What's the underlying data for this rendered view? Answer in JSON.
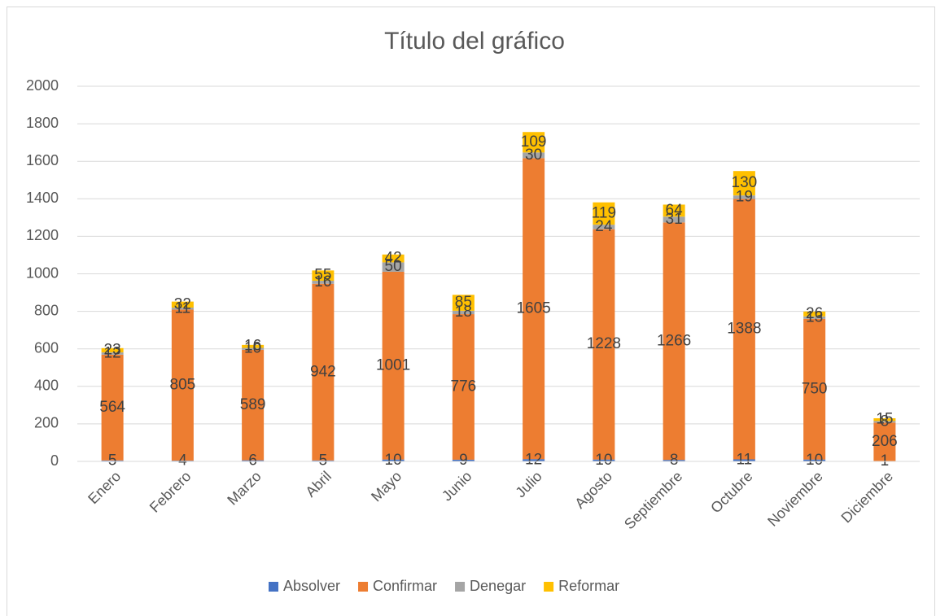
{
  "chart_data": {
    "type": "stacked_bar",
    "title": "Título del gráfico",
    "categories": [
      "Enero",
      "Febrero",
      "Marzo",
      "Abril",
      "Mayo",
      "Junio",
      "Julio",
      "Agosto",
      "Septiembre",
      "Octubre",
      "Noviembre",
      "Diciembre"
    ],
    "series": [
      {
        "name": "Absolver",
        "color": "#4472c4",
        "values": [
          5,
          4,
          6,
          5,
          10,
          9,
          12,
          10,
          8,
          11,
          10,
          1
        ]
      },
      {
        "name": "Confirmar",
        "color": "#ed7d31",
        "values": [
          564,
          805,
          589,
          942,
          1001,
          776,
          1605,
          1228,
          1266,
          1388,
          750,
          206
        ]
      },
      {
        "name": "Denegar",
        "color": "#a5a5a5",
        "values": [
          12,
          11,
          10,
          16,
          50,
          18,
          30,
          24,
          31,
          19,
          13,
          8
        ]
      },
      {
        "name": "Reformar",
        "color": "#ffc000",
        "values": [
          23,
          32,
          16,
          55,
          42,
          85,
          109,
          119,
          64,
          130,
          26,
          15
        ]
      }
    ],
    "ylim": [
      0,
      2000
    ],
    "yticks": [
      0,
      200,
      400,
      600,
      800,
      1000,
      1200,
      1400,
      1600,
      1800,
      2000
    ],
    "grid": true,
    "legend": "bottom"
  }
}
